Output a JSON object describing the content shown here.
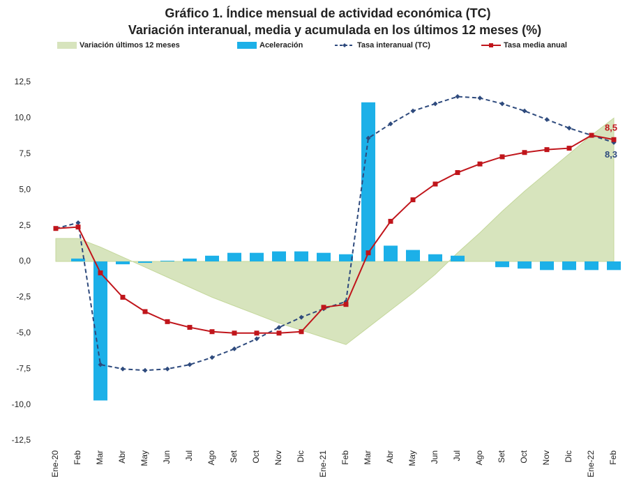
{
  "chart_data": {
    "type": "combo",
    "title": "Gráfico 1. Índice mensual de actividad económica (TC)",
    "subtitle": "Variación interanual, media y acumulada en los últimos 12 meses (%)",
    "categories": [
      "Ene-20",
      "Feb",
      "Mar",
      "Abr",
      "May",
      "Jun",
      "Jul",
      "Ago",
      "Set",
      "Oct",
      "Nov",
      "Dic",
      "Ene-21",
      "Feb",
      "Mar",
      "Abr",
      "May",
      "Jun",
      "Jul",
      "Ago",
      "Set",
      "Oct",
      "Nov",
      "Dic",
      "Ene-22",
      "Feb"
    ],
    "ylim": [
      -12.5,
      12.5
    ],
    "yticks": [
      {
        "value": -12.5,
        "label": "-12,5"
      },
      {
        "value": -10,
        "label": "-10,0"
      },
      {
        "value": -7.5,
        "label": "-7,5"
      },
      {
        "value": -5,
        "label": "-5,0"
      },
      {
        "value": -2.5,
        "label": "-2,5"
      },
      {
        "value": 0,
        "label": "0,0"
      },
      {
        "value": 2.5,
        "label": "2,5"
      },
      {
        "value": 5,
        "label": "5,0"
      },
      {
        "value": 7.5,
        "label": "7,5"
      },
      {
        "value": 10,
        "label": "10,0"
      },
      {
        "value": 12.5,
        "label": "12,5"
      }
    ],
    "series": [
      {
        "name": "Variación últimos 12 meses",
        "type": "area",
        "color": "#d7e4bd",
        "values": [
          1.6,
          1.6,
          1.0,
          0.3,
          -0.4,
          -1.1,
          -1.8,
          -2.5,
          -3.1,
          -3.7,
          -4.3,
          -4.8,
          -5.3,
          -5.8,
          -4.6,
          -3.4,
          -2.2,
          -0.9,
          0.6,
          2.0,
          3.5,
          4.9,
          6.2,
          7.5,
          8.8,
          10.0
        ]
      },
      {
        "name": "Aceleración",
        "type": "bar",
        "color": "#1cb0e8",
        "values": [
          0,
          0.2,
          -9.7,
          -0.2,
          -0.1,
          0.05,
          0.2,
          0.4,
          0.6,
          0.6,
          0.7,
          0.7,
          0.6,
          0.5,
          11.1,
          1.1,
          0.8,
          0.5,
          0.4,
          0,
          -0.4,
          -0.5,
          -0.6,
          -0.6,
          -0.6,
          -0.6
        ]
      },
      {
        "name": "Tasa interanual (TC)",
        "type": "line",
        "dashed": true,
        "marker": "diamond",
        "color": "#2e4a7d",
        "values": [
          2.3,
          2.7,
          -7.2,
          -7.5,
          -7.6,
          -7.5,
          -7.2,
          -6.7,
          -6.1,
          -5.4,
          -4.6,
          -3.9,
          -3.3,
          -2.8,
          8.6,
          9.6,
          10.5,
          11.0,
          11.5,
          11.4,
          11.0,
          10.5,
          9.9,
          9.3,
          8.8,
          8.3
        ],
        "value_labels": [
          null,
          null,
          null,
          null,
          null,
          null,
          null,
          null,
          null,
          null,
          null,
          null,
          null,
          null,
          null,
          null,
          null,
          null,
          null,
          null,
          null,
          null,
          null,
          null,
          null,
          "8,3"
        ]
      },
      {
        "name": "Tasa media anual",
        "type": "line",
        "dashed": false,
        "marker": "square",
        "color": "#c0151b",
        "values": [
          2.3,
          2.4,
          -0.8,
          -2.5,
          -3.5,
          -4.2,
          -4.6,
          -4.9,
          -5.0,
          -5.0,
          -5.0,
          -4.9,
          -3.2,
          -3.0,
          0.6,
          2.8,
          4.3,
          5.4,
          6.2,
          6.8,
          7.3,
          7.6,
          7.8,
          7.9,
          8.8,
          8.5
        ],
        "value_labels": [
          null,
          null,
          null,
          null,
          null,
          null,
          null,
          null,
          null,
          null,
          null,
          null,
          null,
          null,
          null,
          null,
          null,
          null,
          null,
          null,
          null,
          null,
          null,
          null,
          null,
          "8,5"
        ]
      }
    ]
  }
}
